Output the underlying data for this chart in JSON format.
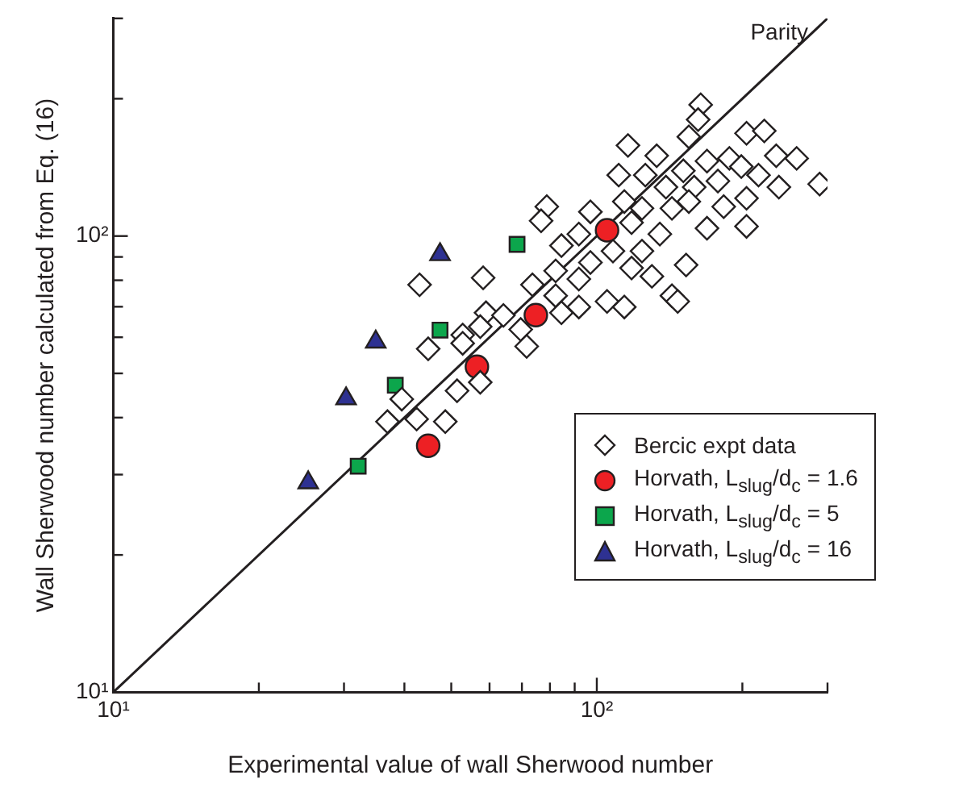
{
  "chart_data": {
    "type": "scatter",
    "xlabel": "Experimental value of wall Sherwood number",
    "ylabel": "Wall Sherwood number calculated from Eq. (16)",
    "log": "xy",
    "grid": false,
    "legend": "bottom right",
    "xlim": [
      10,
      300
    ],
    "ylim": [
      10,
      300
    ],
    "xticks": [
      {
        "value": 10,
        "label": "10¹"
      },
      {
        "value": 20,
        "label": null
      },
      {
        "value": 30,
        "label": null
      },
      {
        "value": 40,
        "label": null
      },
      {
        "value": 50,
        "label": null
      },
      {
        "value": 60,
        "label": null
      },
      {
        "value": 70,
        "label": null
      },
      {
        "value": 80,
        "label": null
      },
      {
        "value": 90,
        "label": null
      },
      {
        "value": 100,
        "label": "10²"
      },
      {
        "value": 200,
        "label": null
      },
      {
        "value": 300,
        "label": null
      }
    ],
    "yticks": [
      {
        "value": 10,
        "label": "10¹"
      },
      {
        "value": 20,
        "label": null
      },
      {
        "value": 30,
        "label": null
      },
      {
        "value": 40,
        "label": null
      },
      {
        "value": 50,
        "label": null
      },
      {
        "value": 60,
        "label": null
      },
      {
        "value": 70,
        "label": null
      },
      {
        "value": 80,
        "label": null
      },
      {
        "value": 90,
        "label": null
      },
      {
        "value": 100,
        "label": "10²"
      },
      {
        "value": 200,
        "label": null
      },
      {
        "value": 300,
        "label": null
      }
    ],
    "series": [
      {
        "name": "Bercic expt data",
        "color": "#ffffff",
        "marker": "diamond",
        "x": [
          164,
          162,
          155,
          116,
          204,
          222,
          133,
          151,
          169,
          188,
          199,
          235,
          259,
          289,
          111,
          126,
          139,
          159,
          178,
          204,
          238,
          216,
          78.8,
          76.7,
          97,
          114,
          124,
          143,
          155,
          183,
          169,
          204,
          84.5,
          91.8,
          118,
          135,
          108,
          124,
          97,
          82.2,
          73.6,
          58.2,
          43,
          118,
          130,
          153,
          91.8,
          82.2,
          91.8,
          105,
          114,
          143,
          147,
          59,
          64.1,
          57.4,
          69.6,
          71.6,
          52.8,
          44.8,
          52.8,
          51.4,
          57.4,
          39.5,
          36.9,
          42.4,
          48.6,
          84.5
        ],
        "values": [
          194,
          180,
          165,
          158,
          168,
          170,
          150,
          139,
          146,
          148,
          142,
          150,
          148,
          130,
          136,
          136,
          128,
          128,
          132,
          121,
          128,
          136,
          116,
          108,
          113,
          119,
          115,
          115,
          119,
          116,
          104,
          105,
          95.3,
          101,
          107,
          101,
          92.7,
          92.7,
          87.5,
          83.9,
          78.2,
          81,
          78.2,
          85.1,
          81.6,
          86.4,
          80.5,
          74,
          69.9,
          71.9,
          69.9,
          74,
          71.9,
          67.9,
          67,
          63.3,
          62.4,
          57.3,
          60.7,
          56.6,
          58.2,
          45.8,
          47.8,
          43.9,
          39.2,
          39.7,
          39.2,
          67.9
        ]
      },
      {
        "name": "Horvath, L$_{slug}$/d$_{c}$ = 1.6",
        "color": "#ed2024",
        "marker": "circle",
        "x": [
          44.8,
          56.5,
          74.8,
          105
        ],
        "values": [
          34.7,
          51.7,
          67.1,
          103
        ]
      },
      {
        "name": "Horvath, L$_{slug}$/d$_{c}$ = 5",
        "color": "#0ca64c",
        "marker": "square",
        "x": [
          32.1,
          38.3,
          47.4,
          68.4
        ],
        "values": [
          31.3,
          47.1,
          62.2,
          95.9
        ]
      },
      {
        "name": "Horvath, L$_{slug}$/d$_{c}$ = 16",
        "color": "#2e3192",
        "marker": "triangle",
        "x": [
          25.3,
          30.3,
          34.9,
          47.4
        ],
        "values": [
          28.8,
          44,
          58.6,
          91.1
        ]
      },
      {
        "name": "Parity",
        "type": "line",
        "color": "#231f20",
        "marker": "none",
        "line_style": "solid",
        "x": [
          10,
          300
        ],
        "values": [
          10,
          300
        ]
      }
    ]
  }
}
